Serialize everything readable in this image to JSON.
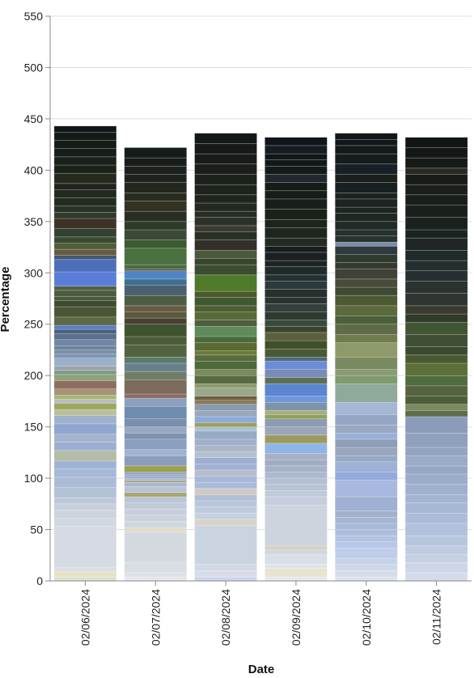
{
  "chart_data": {
    "type": "bar",
    "stacked": true,
    "xlabel": "Date",
    "ylabel": "Percentage",
    "ylim": [
      0,
      550
    ],
    "yticks": [
      0,
      50,
      100,
      150,
      200,
      250,
      300,
      350,
      400,
      450,
      500,
      550
    ],
    "grid": true,
    "legend": "none",
    "categories": [
      "02/06/2024",
      "02/07/2024",
      "02/08/2024",
      "02/09/2024",
      "02/10/2024",
      "02/11/2024"
    ],
    "stacks": [
      {
        "colors": [
          "#dfe1d0",
          "#e6e3c2",
          "#dadee4",
          "#d6dbe3",
          "#d2d8e0",
          "#cdd4de",
          "#c6cfdc",
          "#bcc7d8",
          "#b4c2d8",
          "#adbcd6",
          "#a6b9d8",
          "#9fb3d6",
          "#b5bca6",
          "#9aafd2",
          "#a4b4cf",
          "#8ea6cf",
          "#9fb1cc",
          "#b8c09a",
          "#a1a65c",
          "#b8bcc7",
          "#a8b86a",
          "#a89178",
          "#8d6e5e",
          "#8ea378",
          "#7f9a88",
          "#9aa4a8",
          "#9ab0c9",
          "#8194b3",
          "#7a8fa8",
          "#6f8598",
          "#6f86a8",
          "#5a6f8a",
          "#4c5f7a",
          "#5a7fc8",
          "#5d6846",
          "#4a5535",
          "#3f4a33",
          "#4a5a3a",
          "#4c5d3f",
          "#4f6040",
          "#5b7dd8",
          "#4d6fb8",
          "#3f5a7a",
          "#6a5a3d",
          "#4e5e3a",
          "#3a4a2f",
          "#334230",
          "#3d3226",
          "#2f3b2c",
          "#2a3227",
          "#252b22",
          "#22291f",
          "#1f251d",
          "#262a1e",
          "#1c2219",
          "#1a201a",
          "#181d19",
          "#161b18",
          "#141a18",
          "#101617"
        ],
        "values": [
          4,
          5,
          4,
          40,
          8,
          8,
          6,
          6,
          10,
          10,
          8,
          8,
          10,
          8,
          8,
          10,
          8,
          6,
          6,
          4,
          4,
          6,
          8,
          6,
          4,
          4,
          8,
          4,
          4,
          4,
          6,
          6,
          4,
          4,
          8,
          10,
          6,
          4,
          6,
          4,
          14,
          12,
          4,
          6,
          6,
          6,
          8,
          10,
          6,
          6,
          8,
          8,
          6,
          10,
          8,
          8,
          8,
          8,
          8,
          6
        ]
      },
      {
        "colors": [
          "#e4e6ea",
          "#dcdfe4",
          "#d8dde3",
          "#d4d9df",
          "#e1dcc6",
          "#d0d6de",
          "#cbd3dd",
          "#c7cfdc",
          "#c0cad8",
          "#bbc5d6",
          "#a8a56c",
          "#b8c2d4",
          "#aab8cd",
          "#a7a88a",
          "#a6b4c9",
          "#9aa9c6",
          "#93a7c8",
          "#8fa2c3",
          "#9c9f4c",
          "#8b9dbb",
          "#9fb3d4",
          "#8a9fbf",
          "#7f92b0",
          "#97a9c2",
          "#7a8eab",
          "#6e8cb0",
          "#8aa0be",
          "#8e6a5e",
          "#7c6a5c",
          "#6d7d66",
          "#6a7f8c",
          "#5c7a6a",
          "#52633f",
          "#4a5b39",
          "#3f5330",
          "#4a3f33",
          "#5a5a3e",
          "#6a5a44",
          "#4d5d42",
          "#4a6070",
          "#3f6f8f",
          "#4f85c6",
          "#5b5a3a",
          "#4a6a44",
          "#4a7040",
          "#3a5a2f",
          "#3a4a36",
          "#2d3a2a",
          "#2a2d24",
          "#333323",
          "#282b20",
          "#22271d",
          "#1d221c",
          "#1c211e",
          "#181d1a",
          "#161c1c"
        ],
        "values": [
          4,
          4,
          10,
          30,
          4,
          6,
          6,
          6,
          6,
          6,
          4,
          6,
          4,
          2,
          2,
          2,
          2,
          2,
          6,
          10,
          6,
          10,
          6,
          6,
          8,
          12,
          8,
          4,
          14,
          8,
          8,
          6,
          12,
          8,
          12,
          6,
          6,
          6,
          10,
          10,
          6,
          8,
          2,
          4,
          16,
          8,
          10,
          8,
          10,
          10,
          8,
          10,
          8,
          8,
          8,
          10
        ]
      },
      {
        "colors": [
          "#cdd6ec",
          "#d6dcea",
          "#d0d8e4",
          "#cad3e0",
          "#d9d2c6",
          "#c4d0de",
          "#bfcbdd",
          "#b9c5d9",
          "#b1bfd8",
          "#d1c9c2",
          "#a9badb",
          "#a6b8d8",
          "#b6bdcb",
          "#a0b2d6",
          "#9caed2",
          "#b3c0ce",
          "#aab6c6",
          "#9fb0cb",
          "#98aac4",
          "#a8c0d4",
          "#9c9f56",
          "#8eaad8",
          "#9aa7bc",
          "#8a9ab0",
          "#8b7a5a",
          "#6f5f48",
          "#9aa88a",
          "#8a9a6a",
          "#5a6a44",
          "#7a8a5a",
          "#4d6a3a",
          "#5a6b3f",
          "#6a7a38",
          "#5a6a30",
          "#4c6a3c",
          "#5f8a5a",
          "#4e5e3e",
          "#586a3a",
          "#4f5e2f",
          "#3f5a32",
          "#4a5a2c",
          "#4f7a2a",
          "#3a4d30",
          "#3a452e",
          "#4a5a3a",
          "#332f2a",
          "#2a2f26",
          "#3a3a30",
          "#2c3229",
          "#262c23",
          "#22291f",
          "#1f251c",
          "#1e231c",
          "#1b211b",
          "#1a1f1a",
          "#181c19",
          "#151a18",
          "#131818"
        ],
        "values": [
          4,
          6,
          6,
          38,
          6,
          6,
          6,
          6,
          6,
          6,
          6,
          6,
          6,
          6,
          6,
          6,
          6,
          6,
          8,
          4,
          4,
          6,
          6,
          6,
          4,
          4,
          8,
          4,
          8,
          6,
          8,
          6,
          4,
          8,
          6,
          10,
          6,
          8,
          6,
          8,
          6,
          16,
          10,
          6,
          8,
          10,
          8,
          6,
          8,
          6,
          8,
          8,
          10,
          10,
          10,
          10,
          10,
          10
        ]
      },
      {
        "colors": [
          "#e6e9ed",
          "#e7e3cc",
          "#dfe4ea",
          "#d9dfe7",
          "#d0d6de",
          "#d6d0c0",
          "#cdd4de",
          "#c6cede",
          "#c0cad8",
          "#b9c3d4",
          "#b3bfd2",
          "#acb9d0",
          "#a4b2c8",
          "#9eadc4",
          "#a7b1c3",
          "#8fb5e8",
          "#9d9b5e",
          "#9aa7b8",
          "#8d9bb0",
          "#8fa15a",
          "#a3b07c",
          "#7f93a8",
          "#6f98dc",
          "#5a85d0",
          "#5e6e56",
          "#7a8cb4",
          "#6b8cd6",
          "#4f6b7a",
          "#4a5a36",
          "#3f4f2c",
          "#5a5f3d",
          "#3a4230",
          "#384a3a",
          "#2e3a30",
          "#34403d",
          "#2a3330",
          "#28302d",
          "#2b3a3f",
          "#253030",
          "#1f2b2b",
          "#1c2322",
          "#1b2022",
          "#181e1d",
          "#242a22",
          "#1f261f",
          "#1c241c",
          "#1b211a",
          "#191f19",
          "#181d19",
          "#161b18",
          "#22272e",
          "#141a1a",
          "#12171a",
          "#111619",
          "#151c22",
          "#0f151b"
        ],
        "values": [
          4,
          8,
          4,
          10,
          4,
          4,
          40,
          8,
          6,
          6,
          6,
          6,
          6,
          6,
          6,
          10,
          8,
          8,
          8,
          4,
          4,
          8,
          6,
          12,
          6,
          8,
          8,
          4,
          8,
          8,
          8,
          6,
          6,
          8,
          8,
          6,
          8,
          8,
          6,
          8,
          6,
          8,
          6,
          8,
          10,
          8,
          10,
          10,
          8,
          8,
          8,
          8,
          6,
          6,
          8,
          8
        ]
      },
      {
        "colors": [
          "#dbe2ee",
          "#d4dcea",
          "#cfd8e7",
          "#c6d2e6",
          "#bfccea",
          "#b7c7e7",
          "#b3c3e1",
          "#adbedd",
          "#a8b9d8",
          "#a4b6d4",
          "#a3b1ca",
          "#9fb0d2",
          "#a8b8de",
          "#95abdc",
          "#9eb2d8",
          "#98a9c6",
          "#97a6bc",
          "#8f9fb8",
          "#9bb0d8",
          "#9aa9c0",
          "#95a6c4",
          "#a5b7d4",
          "#8fa99a",
          "#7e9a6e",
          "#8a9a72",
          "#7a8a60",
          "#8f9a6a",
          "#6f7d4e",
          "#5f6a48",
          "#4c5f3a",
          "#5a6a3c",
          "#4d5a2f",
          "#3f4a34",
          "#4a4a3a",
          "#3f4236",
          "#35392f",
          "#303a2f",
          "#2e3a3e",
          "#7a8ca8",
          "#29322f",
          "#26302c",
          "#222a26",
          "#1f2722",
          "#1e241f",
          "#1d2320",
          "#1b2220",
          "#192021",
          "#1a1f1c",
          "#182027",
          "#161c1c",
          "#141a1a",
          "#12171a",
          "#10161a"
        ],
        "values": [
          4,
          6,
          6,
          6,
          10,
          6,
          6,
          6,
          6,
          6,
          6,
          14,
          16,
          8,
          10,
          6,
          8,
          8,
          6,
          8,
          10,
          12,
          18,
          8,
          6,
          12,
          14,
          8,
          10,
          8,
          10,
          10,
          8,
          8,
          10,
          6,
          8,
          8,
          4,
          6,
          6,
          8,
          8,
          6,
          8,
          6,
          10,
          8,
          10,
          10,
          8,
          6,
          6
        ]
      },
      {
        "colors": [
          "#d4dcea",
          "#cdd6e6",
          "#c6d0e3",
          "#bfcbe1",
          "#b8c6dd",
          "#b1c1dc",
          "#acbcd8",
          "#a8b8d4",
          "#a3b4d2",
          "#a0b1cf",
          "#9bacc9",
          "#97a8c5",
          "#9aabc6",
          "#93a4c0",
          "#8fa1bd",
          "#8a9cba",
          "#5e6c4a",
          "#7c8a60",
          "#4c5f3a",
          "#56633f",
          "#4e6c3e",
          "#5a7038",
          "#4a5a30",
          "#3c4a2f",
          "#3f4f36",
          "#405531",
          "#2f3a2b",
          "#3a3a2e",
          "#2f3530",
          "#2a3330",
          "#263030",
          "#23302f",
          "#1f2a2a",
          "#1e2626",
          "#1c2422",
          "#1b221e",
          "#1a201c",
          "#191e1b",
          "#1a2019",
          "#171c18",
          "#2a2a22",
          "#151a17",
          "#131816",
          "#111614"
        ],
        "values": [
          8,
          10,
          8,
          8,
          10,
          12,
          10,
          10,
          8,
          10,
          10,
          8,
          10,
          8,
          14,
          16,
          6,
          6,
          8,
          10,
          10,
          12,
          8,
          8,
          12,
          12,
          8,
          8,
          12,
          12,
          10,
          10,
          10,
          12,
          8,
          12,
          12,
          10,
          10,
          10,
          6,
          10,
          10,
          10
        ]
      }
    ]
  }
}
